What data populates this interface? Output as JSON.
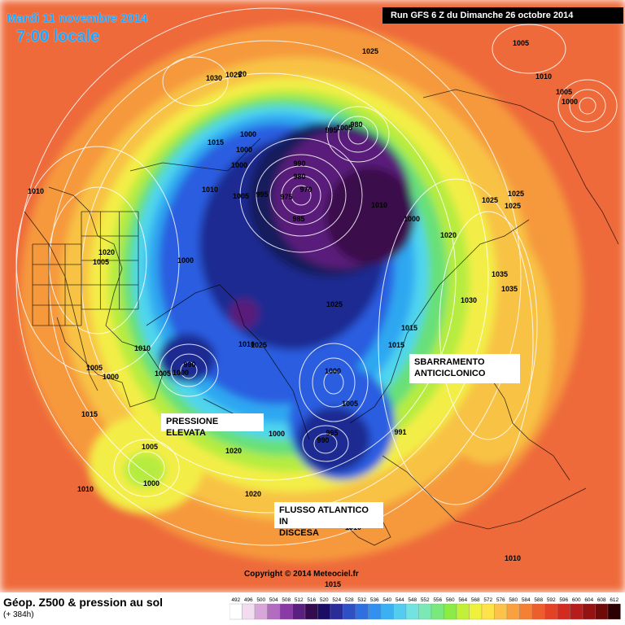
{
  "header": {
    "date": "Mardi 11 novembre 2014",
    "time": "7:00 locale",
    "run": "Run GFS 6 Z du Dimanche 26 octobre 2014"
  },
  "annotations": {
    "high_pressure_block": [
      "SBARRAMENTO",
      "ANTICICLONICO"
    ],
    "pressure_high": "PRESSIONE ELEVATA",
    "atlantic_flow": [
      "FLUSSO ATLANTICO IN",
      "DISCESA"
    ]
  },
  "pressure_labels": [
    "1025",
    "1005",
    "1010",
    "1005",
    "1000",
    "1030",
    "1025",
    "20",
    "980",
    "995",
    "1005",
    "1015",
    "1000",
    "1000",
    "1000",
    "990",
    "980",
    "970",
    "975",
    "995",
    "1005",
    "985",
    "1010",
    "1010",
    "1000",
    "1010",
    "1005",
    "1020",
    "1025",
    "1025",
    "1020",
    "1025",
    "1000",
    "1035",
    "1035",
    "1030",
    "1025",
    "1015",
    "1015",
    "1010",
    "1025",
    "1000",
    "1010",
    "990",
    "1005",
    "1000",
    "1000",
    "1005",
    "995",
    "990",
    "1000",
    "1005",
    "991",
    "1015",
    "1000",
    "1005",
    "1020",
    "1020",
    "1010",
    "1010",
    "1010",
    "1015"
  ],
  "footer": {
    "title": "Géop. Z500 & pression au sol",
    "subtitle": "(+ 384h)",
    "copyright": "Copyright © 2014 Meteociel.fr",
    "scale_values": [
      "492",
      "496",
      "500",
      "504",
      "508",
      "512",
      "516",
      "520",
      "524",
      "528",
      "532",
      "536",
      "540",
      "544",
      "548",
      "552",
      "556",
      "560",
      "564",
      "568",
      "572",
      "576",
      "580",
      "584",
      "588",
      "592",
      "596",
      "600",
      "604",
      "608",
      "612"
    ],
    "scale_colors": [
      "#ffffff",
      "#f2dcef",
      "#d9a6d8",
      "#b36cc0",
      "#8a3aa4",
      "#5b1f7f",
      "#330b4e",
      "#1b0d66",
      "#2a2c9a",
      "#2f4fc4",
      "#2f6fe0",
      "#3390ef",
      "#3bb0f2",
      "#52cdf0",
      "#72e3e0",
      "#7be9b6",
      "#79e87f",
      "#8aec44",
      "#c2f03a",
      "#eef23e",
      "#fde24a",
      "#fcc24a",
      "#f9a03f",
      "#f48034",
      "#ee5d2c",
      "#e34227",
      "#d22b22",
      "#b71c1c",
      "#951213",
      "#6e0a0a",
      "#2a0000"
    ]
  },
  "colors": {
    "far": "#ee6a3a",
    "orange": "#f6993e",
    "yellow_orange": "#f8c244",
    "yellow": "#f3ee46",
    "lime": "#b6ec40",
    "green": "#67e078",
    "cyan": "#4fd5ee",
    "lightblue": "#2ea7f1",
    "blue": "#2b5de0",
    "darkblue": "#1d2a92",
    "navy": "#181a5c",
    "purple": "#5a1a7a",
    "deep_purple": "#3a0a4c"
  }
}
